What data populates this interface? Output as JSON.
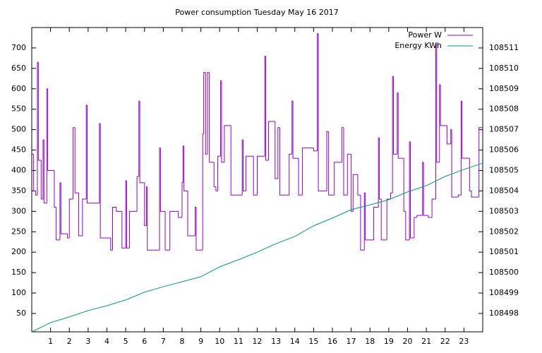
{
  "chart_data": {
    "type": "line",
    "title": "Power consumption Tuesday May 16 2017",
    "xlim": [
      0,
      24
    ],
    "xticks": [
      1,
      2,
      3,
      4,
      5,
      6,
      7,
      8,
      9,
      10,
      11,
      12,
      13,
      14,
      15,
      16,
      17,
      18,
      19,
      20,
      21,
      22,
      23
    ],
    "ylim": [
      5,
      750
    ],
    "yticks": [
      50,
      100,
      150,
      200,
      250,
      300,
      350,
      400,
      450,
      500,
      550,
      600,
      650,
      700
    ],
    "y2lim": [
      108497.1,
      108512
    ],
    "y2ticks": [
      108498,
      108499,
      108500,
      108501,
      108502,
      108503,
      108504,
      108505,
      108506,
      108507,
      108508,
      108509,
      108510,
      108511
    ],
    "legend": "top-right",
    "series": [
      {
        "name": "Power W",
        "color": "#9400d3",
        "style": "steps",
        "x": [
          0,
          0.1,
          0.2,
          0.3,
          0.35,
          0.5,
          0.6,
          0.65,
          0.8,
          0.85,
          1.2,
          1.3,
          1.5,
          1.55,
          1.9,
          2.0,
          2.2,
          2.3,
          2.5,
          2.7,
          2.9,
          2.95,
          3.6,
          3.65,
          4.2,
          4.3,
          4.5,
          4.8,
          5.0,
          5.05,
          5.2,
          5.6,
          5.7,
          5.75,
          6.0,
          6.1,
          6.15,
          6.8,
          6.85,
          7.1,
          7.35,
          7.8,
          8.0,
          8.05,
          8.1,
          8.3,
          8.7,
          8.75,
          9.1,
          9.15,
          9.25,
          9.35,
          9.45,
          9.7,
          9.8,
          9.9,
          10.05,
          10.1,
          10.25,
          10.6,
          10.9,
          11.2,
          11.25,
          11.4,
          11.8,
          12.0,
          12.4,
          12.45,
          12.6,
          12.95,
          13.1,
          13.2,
          13.7,
          13.85,
          13.9,
          14.2,
          14.4,
          15.0,
          15.2,
          15.25,
          15.7,
          15.8,
          16.1,
          16.5,
          16.6,
          16.8,
          17.0,
          17.1,
          17.35,
          17.5,
          17.7,
          17.75,
          18.2,
          18.45,
          18.5,
          18.6,
          18.9,
          19.1,
          19.2,
          19.25,
          19.45,
          19.5,
          19.8,
          19.9,
          20.1,
          20.15,
          20.35,
          20.5,
          20.8,
          20.85,
          21.1,
          21.3,
          21.5,
          21.55,
          21.7,
          21.75,
          22.1,
          22.3,
          22.35,
          22.7,
          22.85,
          22.9,
          23.3,
          23.4,
          23.8,
          24
        ],
        "values": [
          440,
          350,
          340,
          665,
          425,
          330,
          475,
          320,
          600,
          400,
          310,
          230,
          370,
          245,
          235,
          330,
          505,
          345,
          240,
          330,
          560,
          320,
          515,
          235,
          205,
          310,
          300,
          210,
          375,
          210,
          300,
          385,
          570,
          370,
          265,
          360,
          205,
          455,
          300,
          205,
          300,
          285,
          370,
          460,
          350,
          240,
          310,
          205,
          490,
          640,
          440,
          640,
          420,
          360,
          350,
          435,
          620,
          420,
          510,
          340,
          340,
          475,
          350,
          435,
          340,
          435,
          680,
          425,
          520,
          380,
          505,
          340,
          440,
          570,
          430,
          340,
          455,
          448,
          735,
          350,
          495,
          340,
          420,
          505,
          340,
          440,
          300,
          390,
          340,
          205,
          345,
          230,
          310,
          480,
          330,
          230,
          330,
          345,
          630,
          440,
          590,
          430,
          300,
          230,
          470,
          235,
          285,
          290,
          420,
          290,
          285,
          330,
          710,
          420,
          610,
          510,
          465,
          500,
          335,
          340,
          570,
          430,
          350,
          335,
          505,
          505
        ]
      },
      {
        "name": "Energy KWh",
        "color": "#009e73",
        "axis": "y2",
        "x": [
          0,
          1,
          2,
          3,
          4,
          5,
          6,
          7,
          8,
          9,
          10,
          11,
          12,
          13,
          14,
          15,
          16,
          17,
          18,
          19,
          20,
          21,
          22,
          23,
          24
        ],
        "values": [
          108497.1,
          108497.55,
          108497.83,
          108498.14,
          108498.38,
          108498.66,
          108499.04,
          108499.31,
          108499.55,
          108499.8,
          108500.28,
          108500.63,
          108501.0,
          108501.42,
          108501.77,
          108502.29,
          108502.67,
          108503.08,
          108503.32,
          108503.57,
          108503.95,
          108504.26,
          108504.71,
          108505.05,
          108505.36
        ]
      }
    ]
  }
}
